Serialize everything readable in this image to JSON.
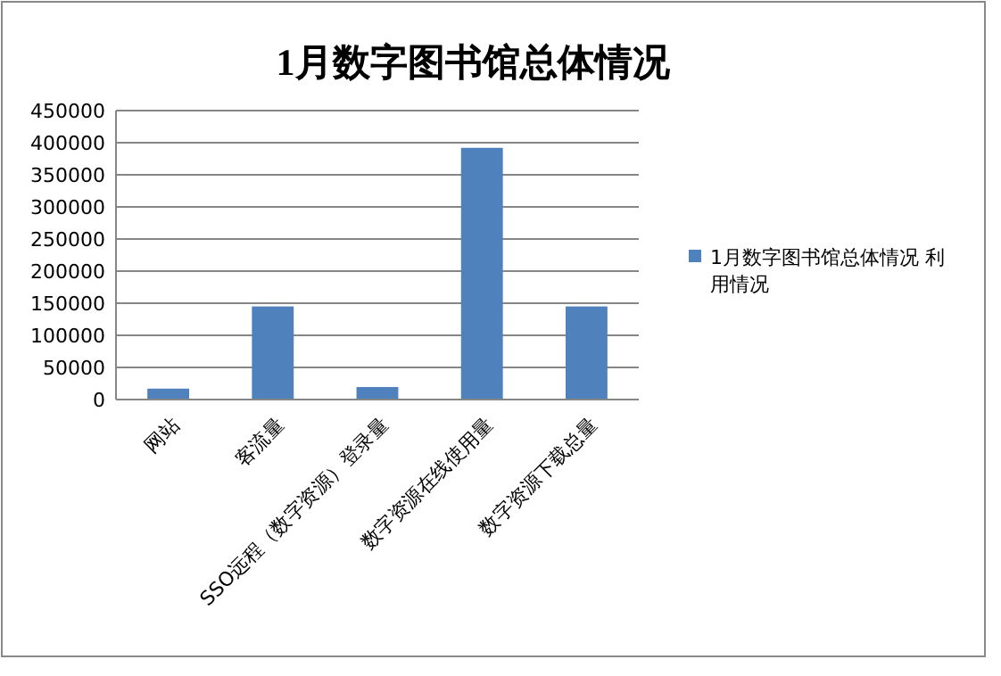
{
  "chart_data": {
    "type": "bar",
    "title": "1月数字图书馆总体情况",
    "categories": [
      "网站",
      "客流量",
      "SSO远程（数字资源）登录量",
      "数字资源在线使用量",
      "数字资源下载总量"
    ],
    "series": [
      {
        "name": "1月数字图书馆总体情况 利用情况",
        "color": "#4f81bd",
        "values": [
          17000,
          145000,
          19500,
          392000,
          145000
        ]
      }
    ],
    "ylim": [
      0,
      450000
    ],
    "yticks": [
      0,
      50000,
      100000,
      150000,
      200000,
      250000,
      300000,
      350000,
      400000,
      450000
    ],
    "grid": "y",
    "legend": "right"
  }
}
